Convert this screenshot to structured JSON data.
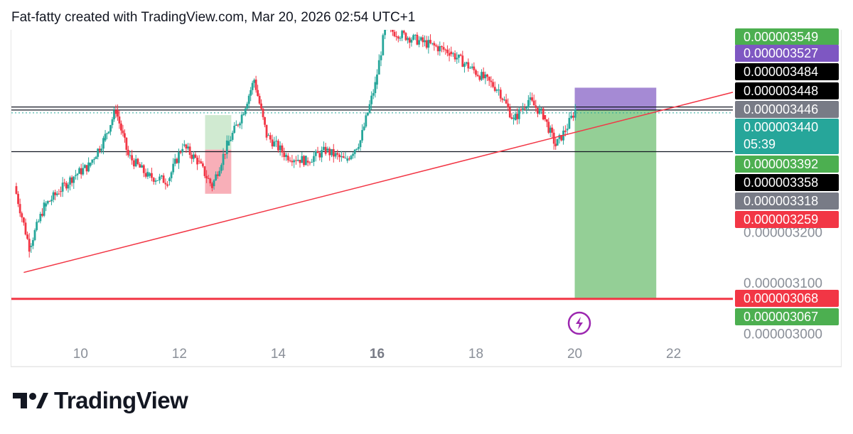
{
  "header": {
    "text": "Fat-fatty created with TradingView.com, Mar 20, 2026 02:54 UTC+1"
  },
  "brand": {
    "name": "TradingView",
    "icon": "tradingview-logo-icon"
  },
  "chart_data": {
    "type": "candlestick",
    "x_ticks": [
      {
        "label": "10",
        "day": 10,
        "bold": false
      },
      {
        "label": "12",
        "day": 12,
        "bold": false
      },
      {
        "label": "14",
        "day": 14,
        "bold": false
      },
      {
        "label": "16",
        "day": 16,
        "bold": true
      },
      {
        "label": "18",
        "day": 18,
        "bold": false
      },
      {
        "label": "20",
        "day": 20,
        "bold": false
      },
      {
        "label": "22",
        "day": 22,
        "bold": false
      }
    ],
    "y_ticks": [
      "0.000003200",
      "0.000003100",
      "0.000003000"
    ],
    "y_tick_values": [
      3.2e-06,
      3.1e-06,
      3e-06
    ],
    "price_labels": [
      {
        "text": "0.000003549",
        "value": 3.549e-06,
        "color": "#4caf50"
      },
      {
        "text": "0.000003527",
        "value": 3.527e-06,
        "color": "#7e57c2"
      },
      {
        "text": "0.000003484",
        "value": 3.484e-06,
        "color": "#000000"
      },
      {
        "text": "0.000003448",
        "value": 3.448e-06,
        "color": "#000000"
      },
      {
        "text": "0.000003446",
        "value": 3.446e-06,
        "color": "#787b86"
      },
      {
        "text": "0.000003440",
        "sub": "05:39",
        "value": 3.44e-06,
        "color": "#26a69a"
      },
      {
        "text": "0.000003392",
        "value": 3.392e-06,
        "color": "#4caf50"
      },
      {
        "text": "0.000003358",
        "value": 3.358e-06,
        "color": "#000000"
      },
      {
        "text": "0.000003318",
        "value": 3.318e-06,
        "color": "#787b86"
      },
      {
        "text": "0.000003259",
        "value": 3.259e-06,
        "color": "#f23645"
      },
      {
        "text": "0.000003068",
        "value": 3.068e-06,
        "color": "#f23645"
      },
      {
        "text": "0.000003067",
        "value": 3.067e-06,
        "color": "#4caf50"
      }
    ],
    "horizontal_lines": [
      {
        "value": 3.446e-06,
        "color": "#131722"
      },
      {
        "value": 3.44e-06,
        "color": "#131722"
      },
      {
        "value": 3.358e-06,
        "color": "#131722"
      },
      {
        "value": 3.068e-06,
        "color": "#f23645"
      }
    ],
    "last_price": {
      "value": 3.44e-06,
      "color": "#26a69a"
    },
    "trendline": {
      "from": {
        "day": 8.85,
        "value": 3.12e-06
      },
      "to": {
        "day": 23.2,
        "value": 3.475e-06
      },
      "color": "#f23645"
    },
    "long_position": {
      "from_day": 20.0,
      "to_day": 21.65,
      "entry": 3.44e-06,
      "target": 3.484e-06,
      "stop": 3.068e-06,
      "target_color": "#9575cd",
      "stop_color": "#81c784"
    },
    "small_position": {
      "from_day": 12.52,
      "to_day": 13.05,
      "top": 3.43e-06,
      "entry": 3.362e-06,
      "bottom": 3.275e-06
    },
    "candles": [
      {
        "day": 8.7,
        "o": 3.3,
        "h": 3.31,
        "l": 3.28,
        "c": 3.29
      },
      {
        "day": 9.0,
        "o": 3.23,
        "h": 3.24,
        "l": 3.15,
        "c": 3.17
      },
      {
        "day": 9.3,
        "o": 3.18,
        "h": 3.26,
        "l": 3.17,
        "c": 3.25
      },
      {
        "day": 9.6,
        "o": 3.25,
        "h": 3.3,
        "l": 3.23,
        "c": 3.28
      },
      {
        "day": 9.9,
        "o": 3.28,
        "h": 3.33,
        "l": 3.25,
        "c": 3.31
      },
      {
        "day": 10.2,
        "o": 3.31,
        "h": 3.35,
        "l": 3.29,
        "c": 3.33
      },
      {
        "day": 10.5,
        "o": 3.33,
        "h": 3.4,
        "l": 3.3,
        "c": 3.38
      },
      {
        "day": 10.75,
        "o": 3.38,
        "h": 3.465,
        "l": 3.37,
        "c": 3.44
      },
      {
        "day": 11.0,
        "o": 3.44,
        "h": 3.45,
        "l": 3.34,
        "c": 3.35
      },
      {
        "day": 11.4,
        "o": 3.34,
        "h": 3.35,
        "l": 3.3,
        "c": 3.31
      },
      {
        "day": 11.8,
        "o": 3.32,
        "h": 3.34,
        "l": 3.29,
        "c": 3.3
      },
      {
        "day": 12.1,
        "o": 3.3,
        "h": 3.38,
        "l": 3.29,
        "c": 3.37
      },
      {
        "day": 12.4,
        "o": 3.37,
        "h": 3.38,
        "l": 3.33,
        "c": 3.34
      },
      {
        "day": 12.7,
        "o": 3.34,
        "h": 3.35,
        "l": 3.28,
        "c": 3.29
      },
      {
        "day": 13.0,
        "o": 3.29,
        "h": 3.38,
        "l": 3.28,
        "c": 3.37
      },
      {
        "day": 13.3,
        "o": 3.37,
        "h": 3.45,
        "l": 3.36,
        "c": 3.43
      },
      {
        "day": 13.55,
        "o": 3.43,
        "h": 3.565,
        "l": 3.42,
        "c": 3.5
      },
      {
        "day": 13.8,
        "o": 3.5,
        "h": 3.51,
        "l": 3.38,
        "c": 3.39
      },
      {
        "day": 14.2,
        "o": 3.39,
        "h": 3.4,
        "l": 3.34,
        "c": 3.35
      },
      {
        "day": 14.6,
        "o": 3.36,
        "h": 3.38,
        "l": 3.32,
        "c": 3.34
      },
      {
        "day": 15.0,
        "o": 3.34,
        "h": 3.37,
        "l": 3.32,
        "c": 3.36
      },
      {
        "day": 15.4,
        "o": 3.36,
        "h": 3.38,
        "l": 3.33,
        "c": 3.34
      },
      {
        "day": 15.7,
        "o": 3.34,
        "h": 3.39,
        "l": 3.33,
        "c": 3.38
      },
      {
        "day": 16.0,
        "o": 3.38,
        "h": 3.5,
        "l": 3.37,
        "c": 3.49
      },
      {
        "day": 16.2,
        "o": 3.49,
        "h": 3.61,
        "l": 3.48,
        "c": 3.6
      },
      {
        "day": 17.5,
        "o": 3.56,
        "h": 3.6,
        "l": 3.54,
        "c": 3.555
      },
      {
        "day": 18.5,
        "o": 3.56,
        "h": 3.57,
        "l": 3.47,
        "c": 3.48
      },
      {
        "day": 18.8,
        "o": 3.48,
        "h": 3.49,
        "l": 3.41,
        "c": 3.42
      },
      {
        "day": 19.1,
        "o": 3.42,
        "h": 3.48,
        "l": 3.41,
        "c": 3.46
      },
      {
        "day": 19.4,
        "o": 3.46,
        "h": 3.47,
        "l": 3.42,
        "c": 3.43
      },
      {
        "day": 19.65,
        "o": 3.43,
        "h": 3.44,
        "l": 3.36,
        "c": 3.37
      },
      {
        "day": 19.85,
        "o": 3.37,
        "h": 3.41,
        "l": 3.36,
        "c": 3.4
      },
      {
        "day": 20.05,
        "o": 3.4,
        "h": 3.445,
        "l": 3.39,
        "c": 3.44
      }
    ],
    "candle_scale": 1e-06,
    "up_color": "#26a69a",
    "down_color": "#f23645",
    "marker_icon": "lightning-icon",
    "marker_day": 20.05,
    "xlim": [
      8.6,
      23.2
    ],
    "ylim": [
      2.985e-06,
      3.598e-06
    ]
  }
}
